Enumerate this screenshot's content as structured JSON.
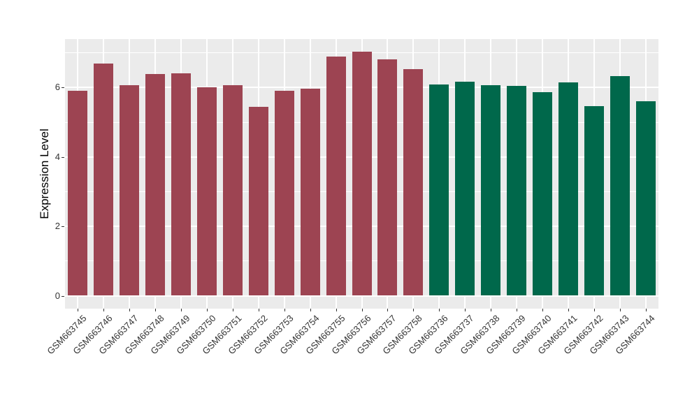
{
  "figure": {
    "background": "#ffffff",
    "panel_background": "#ebebeb",
    "grid_color": "#ffffff",
    "tick_color": "#333333"
  },
  "chart_data": {
    "type": "bar",
    "title": "",
    "xlabel": "",
    "ylabel": "Expression Level",
    "categories": [
      "GSM663745",
      "GSM663746",
      "GSM663747",
      "GSM663748",
      "GSM663749",
      "GSM663750",
      "GSM663751",
      "GSM663752",
      "GSM663753",
      "GSM663754",
      "GSM663755",
      "GSM663756",
      "GSM663757",
      "GSM663758",
      "GSM663736",
      "GSM663737",
      "GSM663738",
      "GSM663739",
      "GSM663740",
      "GSM663741",
      "GSM663742",
      "GSM663743",
      "GSM663744"
    ],
    "values": [
      5.9,
      6.7,
      6.06,
      6.38,
      6.4,
      6.01,
      6.07,
      5.44,
      5.9,
      5.97,
      6.9,
      7.03,
      6.82,
      6.52,
      6.08,
      6.17,
      6.06,
      6.04,
      5.86,
      6.14,
      5.46,
      6.32,
      5.6
    ],
    "groups": [
      "group1",
      "group1",
      "group1",
      "group1",
      "group1",
      "group1",
      "group1",
      "group1",
      "group1",
      "group1",
      "group1",
      "group1",
      "group1",
      "group1",
      "group2",
      "group2",
      "group2",
      "group2",
      "group2",
      "group2",
      "group2",
      "group2",
      "group2"
    ],
    "colors": {
      "group1": "#9D4452",
      "group2": "#00684B"
    },
    "yticks_major": [
      0,
      2,
      4,
      6
    ],
    "yticks_minor": [
      1,
      3,
      5,
      7
    ],
    "ylim": [
      -0.37,
      7.39
    ],
    "grid": true,
    "legend": false,
    "x_label_angle_deg": 45
  }
}
